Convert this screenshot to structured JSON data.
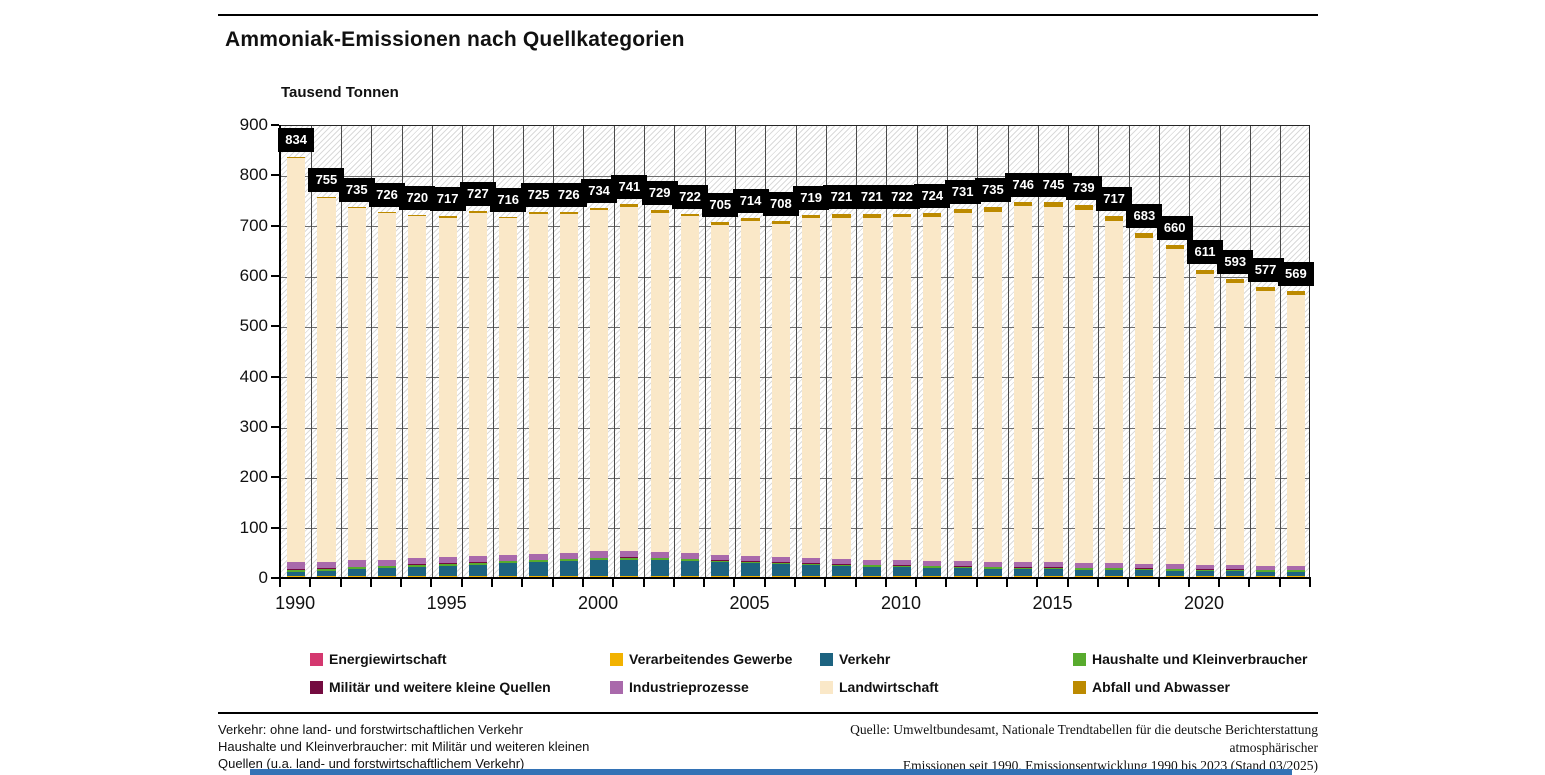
{
  "page": {
    "title": "Ammoniak-Emissionen nach Quellkategorien",
    "accent_bar_color": "#3372b5"
  },
  "chart_data": {
    "type": "bar",
    "stacked": true,
    "title": "Ammoniak-Emissionen nach Quellkategorien",
    "ylabel": "Tausend Tonnen",
    "ylim": [
      0,
      900
    ],
    "ytick_step": 100,
    "grid": "horizontal gridlines every 100, vertical gridline between each year, hatched plot background",
    "legend_position": "bottom",
    "x": [
      1990,
      1991,
      1992,
      1993,
      1994,
      1995,
      1996,
      1997,
      1998,
      1999,
      2000,
      2001,
      2002,
      2003,
      2004,
      2005,
      2006,
      2007,
      2008,
      2009,
      2010,
      2011,
      2012,
      2013,
      2014,
      2015,
      2016,
      2017,
      2018,
      2019,
      2020,
      2021,
      2022,
      2023
    ],
    "xticks": [
      1990,
      1995,
      2000,
      2005,
      2010,
      2015,
      2020
    ],
    "totals": [
      834,
      755,
      735,
      726,
      720,
      717,
      727,
      716,
      725,
      726,
      734,
      741,
      729,
      722,
      705,
      714,
      708,
      719,
      721,
      721,
      722,
      724,
      731,
      735,
      746,
      745,
      739,
      717,
      683,
      660,
      611,
      593,
      577,
      569
    ],
    "series": [
      {
        "name": "Energiewirtschaft",
        "color": "#d4386f",
        "values": [
          1,
          1,
          1,
          1,
          1,
          1,
          1,
          1,
          1,
          1,
          1,
          1,
          1,
          1,
          1,
          1,
          1,
          1,
          1,
          1,
          1,
          1,
          1,
          1,
          1,
          1,
          1,
          1,
          1,
          1,
          1,
          1,
          1,
          1
        ]
      },
      {
        "name": "Verarbeitendes Gewerbe",
        "color": "#f2b200",
        "values": [
          1,
          1,
          1,
          1,
          1,
          1,
          1,
          1,
          1,
          1,
          1,
          1,
          1,
          1,
          1,
          1,
          1,
          1,
          1,
          1,
          1,
          1,
          1,
          1,
          1,
          1,
          1,
          1,
          1,
          1,
          1,
          1,
          1,
          1
        ]
      },
      {
        "name": "Verkehr",
        "color": "#1d6380",
        "values": [
          8,
          10,
          13,
          15,
          18,
          20,
          22,
          25,
          27,
          29,
          31,
          32,
          31,
          29,
          27,
          25,
          23,
          21,
          19,
          18,
          17,
          16,
          15,
          14,
          13,
          13,
          12,
          12,
          11,
          10,
          9,
          9,
          8,
          8
        ]
      },
      {
        "name": "Haushalte und Kleinverbraucher",
        "color": "#58ab2e",
        "values": [
          4,
          4,
          4,
          4,
          4,
          4,
          4,
          4,
          4,
          4,
          4,
          4,
          4,
          4,
          3,
          3,
          3,
          3,
          3,
          3,
          3,
          3,
          3,
          3,
          3,
          3,
          3,
          3,
          3,
          3,
          3,
          3,
          3,
          3
        ]
      },
      {
        "name": "Militär und weitere kleine Quellen",
        "color": "#740b40",
        "values": [
          1,
          1,
          1,
          1,
          1,
          1,
          1,
          1,
          1,
          1,
          1,
          1,
          1,
          1,
          1,
          1,
          1,
          1,
          1,
          1,
          1,
          1,
          1,
          1,
          1,
          1,
          1,
          1,
          1,
          1,
          1,
          1,
          1,
          1
        ]
      },
      {
        "name": "Industrieprozesse",
        "color": "#a969ab",
        "values": [
          14,
          13,
          13,
          12,
          12,
          12,
          12,
          12,
          12,
          12,
          13,
          13,
          12,
          11,
          11,
          11,
          11,
          11,
          10,
          10,
          10,
          10,
          10,
          10,
          10,
          10,
          10,
          10,
          9,
          9,
          8,
          8,
          8,
          8
        ]
      },
      {
        "name": "Landwirtschaft",
        "color": "#fae8c8",
        "values": [
          803,
          723,
          700,
          690,
          681,
          675,
          683,
          669,
          676,
          674,
          679,
          684,
          674,
          670,
          656,
          666,
          662,
          675,
          679,
          680,
          682,
          684,
          692,
          696,
          708,
          707,
          702,
          680,
          648,
          626,
          579,
          561,
          546,
          538
        ]
      },
      {
        "name": "Abfall und Abwasser",
        "color": "#bc8a00",
        "values": [
          2,
          2,
          2,
          2,
          2,
          3,
          3,
          3,
          3,
          4,
          4,
          5,
          5,
          5,
          5,
          6,
          6,
          6,
          7,
          7,
          7,
          8,
          8,
          9,
          9,
          9,
          9,
          9,
          9,
          9,
          9,
          9,
          9,
          9
        ]
      }
    ]
  },
  "footnotes": {
    "left_line1": "Verkehr: ohne land- und forstwirtschaftlichen Verkehr",
    "left_line2": "Haushalte und Kleinverbraucher: mit Militär und weiteren kleinen",
    "left_line3": "Quellen (u.a. land- und forstwirtschaftlichem Verkehr)",
    "right_line1": "Quelle: Umweltbundesamt, Nationale Trendtabellen für die deutsche Berichterstattung atmosphärischer",
    "right_line2": "Emissionen seit 1990, Emissionsentwicklung 1990 bis 2023 (Stand 03/2025)"
  }
}
